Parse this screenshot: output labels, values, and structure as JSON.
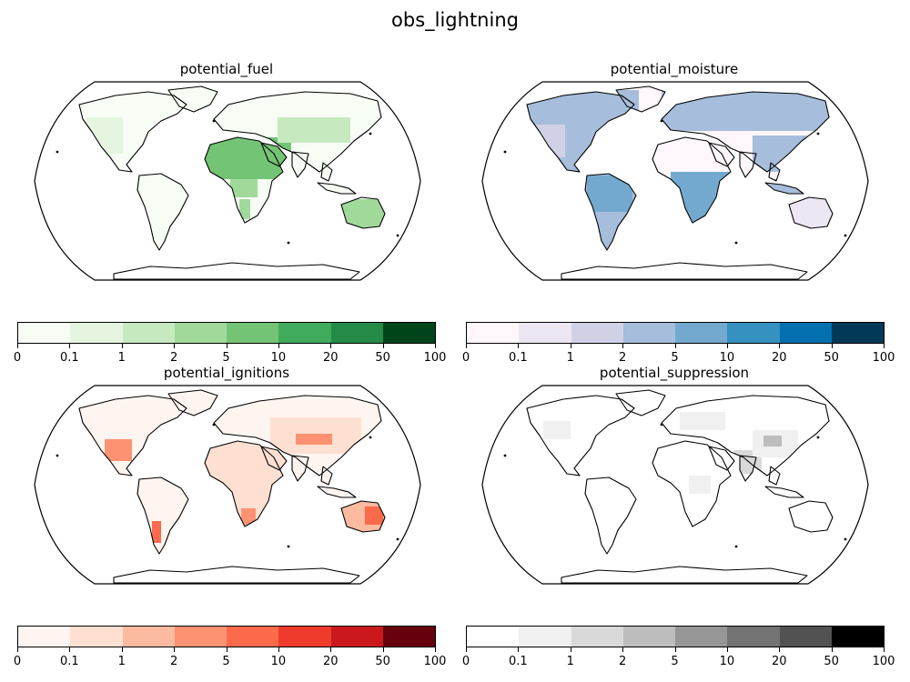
{
  "title": "obs_lightning",
  "colorbar_ticks": [
    "0",
    "0.1",
    "1",
    "2",
    "5",
    "10",
    "20",
    "50",
    "100"
  ],
  "panels": [
    {
      "title": "potential_fuel",
      "colormap": "Greens",
      "colors": [
        "#f7fcf5",
        "#e5f5e0",
        "#c7e9c0",
        "#a1d99b",
        "#74c476",
        "#41ab5d",
        "#238b45",
        "#00441b"
      ]
    },
    {
      "title": "potential_moisture",
      "colormap": "PuBu",
      "colors": [
        "#fff7fb",
        "#ece7f2",
        "#d0d1e6",
        "#a6bddb",
        "#74a9cf",
        "#3690c0",
        "#0570b0",
        "#023858"
      ]
    },
    {
      "title": "potential_ignitions",
      "colormap": "Reds",
      "colors": [
        "#fff5f0",
        "#fee0d2",
        "#fcbba1",
        "#fc9272",
        "#fb6a4a",
        "#ef3b2c",
        "#cb181d",
        "#67000d"
      ]
    },
    {
      "title": "potential_suppression",
      "colormap": "Greys",
      "colors": [
        "#ffffff",
        "#f0f0f0",
        "#d9d9d9",
        "#bdbdbd",
        "#969696",
        "#737373",
        "#525252",
        "#000000"
      ]
    }
  ],
  "chart_data": [
    {
      "type": "heatmap",
      "title": "potential_fuel",
      "projection": "Robinson world map",
      "color_bins": [
        "0",
        "0.1",
        "1",
        "2",
        "5",
        "10",
        "20",
        "50",
        "100"
      ],
      "dominant_regions": {
        "Sahara / Arabia": "5-10",
        "Australia interior": "2-5",
        "Central Asia": "1-5",
        "Western North America": "0.1-1",
        "Rest of land": "0-0.1"
      }
    },
    {
      "type": "heatmap",
      "title": "potential_moisture",
      "projection": "Robinson world map",
      "color_bins": [
        "0",
        "0.1",
        "1",
        "2",
        "5",
        "10",
        "20",
        "50",
        "100"
      ],
      "dominant_regions": {
        "Central Africa": "5-10",
        "South America": "2-10",
        "Eastern North America": "2-5",
        "Northern Eurasia": "2-5",
        "Sahara / Arabia": "0-0.1"
      }
    },
    {
      "type": "heatmap",
      "title": "potential_ignitions",
      "projection": "Robinson world map",
      "color_bins": [
        "0",
        "0.1",
        "1",
        "2",
        "5",
        "10",
        "20",
        "50",
        "100"
      ],
      "dominant_regions": {
        "Southern Africa": "2-10",
        "Eastern Australia": "2-10",
        "Mexico": "2-5",
        "Central Asia": "1-5",
        "Rest of land": "0-1"
      }
    },
    {
      "type": "heatmap",
      "title": "potential_suppression",
      "projection": "Robinson world map",
      "color_bins": [
        "0",
        "0.1",
        "1",
        "2",
        "5",
        "10",
        "20",
        "50",
        "100"
      ],
      "dominant_regions": {
        "India / China": "0.1-2",
        "Europe": "0.1-1",
        "Rest of land": "0-0.1"
      }
    }
  ]
}
